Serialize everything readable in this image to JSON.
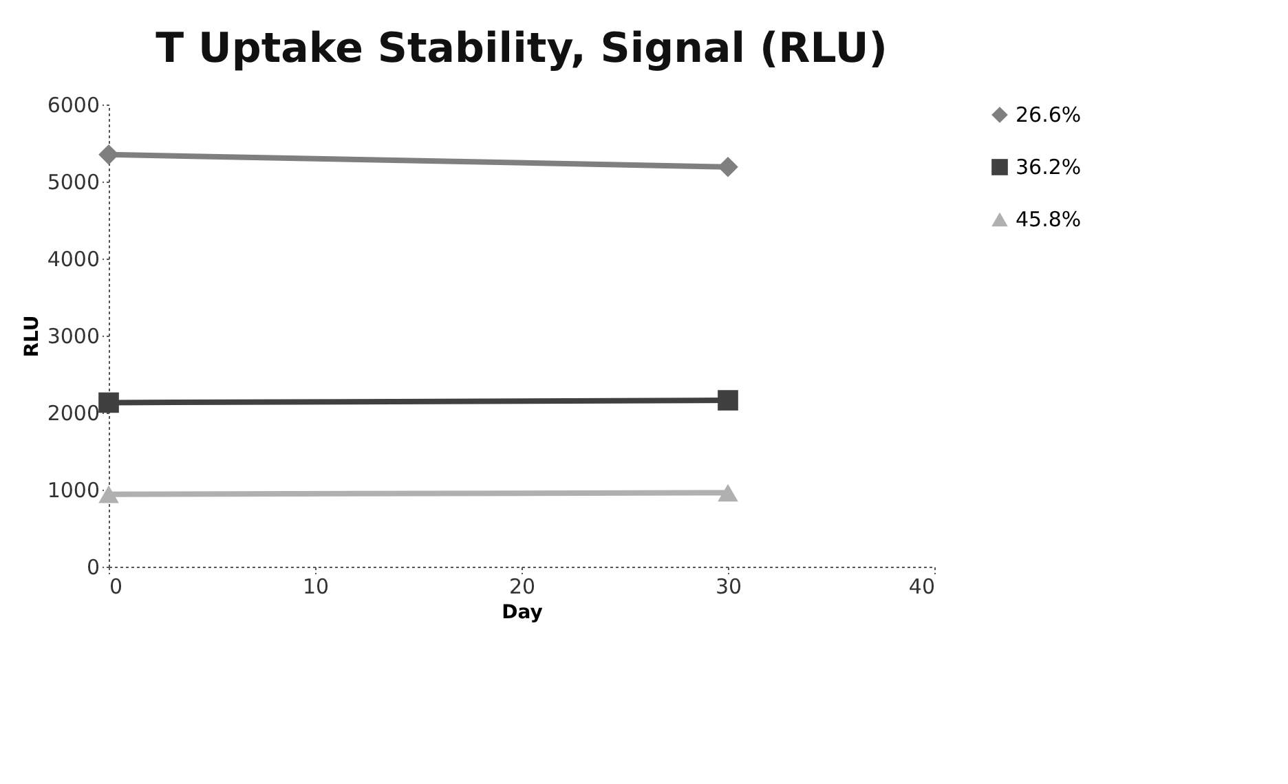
{
  "chart_data": {
    "type": "line",
    "title": "T Uptake Stability, Signal (RLU)",
    "xlabel": "Day",
    "ylabel": "RLU",
    "x": [
      0,
      30
    ],
    "series": [
      {
        "name": "26.6%",
        "color": "#7f7f7f",
        "marker": "diamond",
        "values": [
          5350,
          5190
        ]
      },
      {
        "name": "36.2%",
        "color": "#404040",
        "marker": "square",
        "values": [
          2130,
          2160
        ]
      },
      {
        "name": "45.8%",
        "color": "#b0b0b0",
        "marker": "triangle",
        "values": [
          940,
          960
        ]
      }
    ],
    "xlim": [
      0,
      40
    ],
    "xticks": [
      0,
      10,
      20,
      30,
      40
    ],
    "ylim": [
      0,
      6000
    ],
    "yticks": [
      0,
      1000,
      2000,
      3000,
      4000,
      5000,
      6000
    ],
    "legend": "right"
  }
}
